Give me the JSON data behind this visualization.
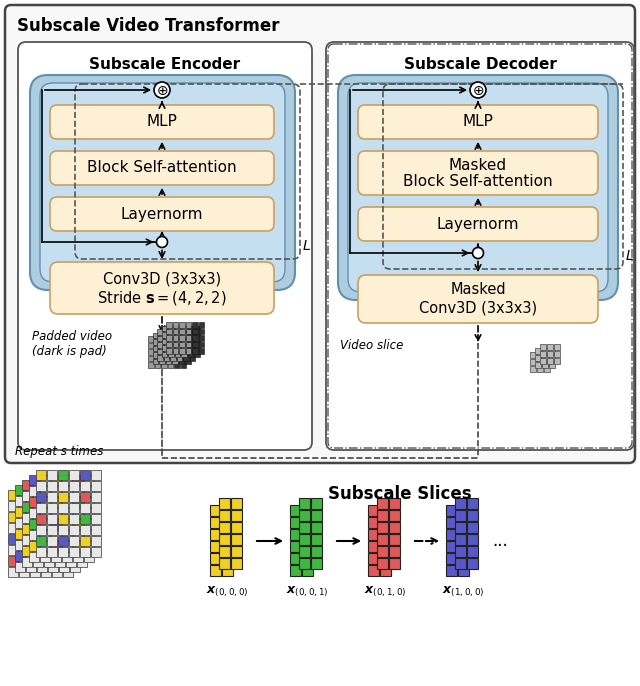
{
  "title": "Subscale Video Transformer",
  "encoder_title": "Subscale Encoder",
  "decoder_title": "Subscale Decoder",
  "slices_title": "Subscale Slices",
  "module_bg": "#fdf0d5",
  "module_border": "#c8a060",
  "block_bg_outer": "#aecde0",
  "block_bg_inner": "#c5dff0",
  "panel_bg": "#ffffff",
  "outer_bg": "#f5f5f5",
  "slice_labels": [
    "$\\boldsymbol{x}_{(0,0,0)}$",
    "$\\boldsymbol{x}_{(0,0,1)}$",
    "$\\boldsymbol{x}_{(0,1,0)}$",
    "$\\boldsymbol{x}_{(1,0,0)}$"
  ],
  "slice_colors": [
    "#f0d020",
    "#40b840",
    "#e05858",
    "#5858c8"
  ],
  "bg_color": "#ffffff"
}
